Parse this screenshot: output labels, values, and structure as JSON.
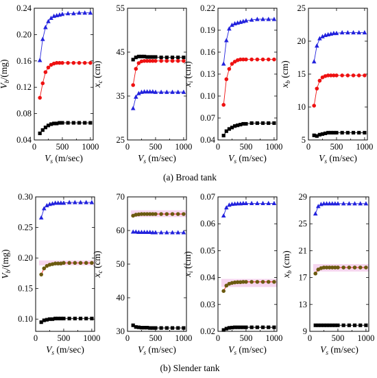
{
  "captions": {
    "top": "(a) Broad tank",
    "bottom": "(b) Slender tank"
  },
  "colors": {
    "black": "#000000",
    "red": "#ee1111",
    "blue": "#2222dd",
    "olive": "#6b5a10",
    "highlight": "#f6d6ef"
  },
  "chart_data": [
    {
      "type": "line",
      "id": "a1",
      "xlabel": {
        "main": "V",
        "sub": "s",
        "rest": " (m/sec)"
      },
      "ylabel": {
        "main": "V",
        "sub": "b",
        "rest": "/(mg)"
      },
      "xlim": [
        0,
        1050
      ],
      "ylim": [
        0.04,
        0.24
      ],
      "xticks": [
        0,
        500,
        1000
      ],
      "yticks": [
        0.04,
        0.08,
        0.12,
        0.16,
        0.2,
        0.24
      ],
      "ytick_labels": [
        "0.04",
        "0.08",
        "0.12",
        "0.16",
        "0.20",
        "0.24"
      ],
      "x": [
        100,
        150,
        200,
        250,
        300,
        350,
        400,
        450,
        500,
        600,
        700,
        800,
        900,
        1000
      ],
      "series": [
        {
          "color": "blue",
          "marker": "triangle",
          "values": [
            0.161,
            0.193,
            0.211,
            0.22,
            0.225,
            0.228,
            0.229,
            0.23,
            0.231,
            0.232,
            0.232,
            0.233,
            0.233,
            0.233
          ]
        },
        {
          "color": "red",
          "marker": "circle",
          "values": [
            0.104,
            0.126,
            0.143,
            0.15,
            0.154,
            0.156,
            0.157,
            0.157,
            0.157,
            0.157,
            0.157,
            0.157,
            0.157,
            0.157
          ]
        },
        {
          "color": "black",
          "marker": "square",
          "values": [
            0.05,
            0.055,
            0.059,
            0.062,
            0.064,
            0.065,
            0.065,
            0.066,
            0.066,
            0.066,
            0.066,
            0.066,
            0.066,
            0.066
          ]
        }
      ]
    },
    {
      "type": "line",
      "id": "a2",
      "xlabel": {
        "main": "V",
        "sub": "s",
        "rest": " (m/sec)"
      },
      "ylabel": {
        "main": "x",
        "sub": "c",
        "rest": " (cm)"
      },
      "xlim": [
        0,
        1050
      ],
      "ylim": [
        25,
        55
      ],
      "xticks": [
        0,
        500,
        1000
      ],
      "yticks": [
        25,
        35,
        45,
        55
      ],
      "ytick_labels": [
        "25",
        "35",
        "45",
        "55"
      ],
      "x": [
        100,
        150,
        200,
        250,
        300,
        350,
        400,
        450,
        500,
        600,
        700,
        800,
        900,
        1000
      ],
      "series": [
        {
          "color": "black",
          "marker": "square",
          "values": [
            43.3,
            43.8,
            44.0,
            44.0,
            44.0,
            43.9,
            43.9,
            43.9,
            43.9,
            43.8,
            43.8,
            43.8,
            43.8,
            43.8
          ]
        },
        {
          "color": "red",
          "marker": "circle",
          "values": [
            37.5,
            41.2,
            42.5,
            42.9,
            43.0,
            43.0,
            43.0,
            43.0,
            43.0,
            43.0,
            43.0,
            43.0,
            43.0,
            43.0
          ]
        },
        {
          "color": "blue",
          "marker": "triangle",
          "values": [
            32.2,
            34.8,
            35.6,
            35.9,
            36.0,
            36.0,
            36.0,
            36.0,
            35.9,
            35.9,
            35.9,
            35.9,
            35.9,
            35.9
          ]
        }
      ]
    },
    {
      "type": "line",
      "id": "a3",
      "xlabel": {
        "main": "V",
        "sub": "s",
        "rest": " (m/sec)"
      },
      "ylabel": {
        "main": "x",
        "sub": "i",
        "rest": " (cm)"
      },
      "xlim": [
        0,
        1050
      ],
      "ylim": [
        0.04,
        0.22
      ],
      "xticks": [
        0,
        500,
        1000
      ],
      "yticks": [
        0.04,
        0.07,
        0.1,
        0.13,
        0.16,
        0.19,
        0.22
      ],
      "ytick_labels": [
        "0.04",
        "0.07",
        "0.10",
        "0.13",
        "0.16",
        "0.19",
        "0.22"
      ],
      "x": [
        100,
        150,
        200,
        250,
        300,
        350,
        400,
        450,
        500,
        600,
        700,
        800,
        900,
        1000
      ],
      "series": [
        {
          "color": "blue",
          "marker": "triangle",
          "values": [
            0.144,
            0.176,
            0.192,
            0.197,
            0.199,
            0.2,
            0.201,
            0.202,
            0.203,
            0.204,
            0.205,
            0.205,
            0.205,
            0.205
          ]
        },
        {
          "color": "red",
          "marker": "circle",
          "values": [
            0.088,
            0.123,
            0.137,
            0.144,
            0.147,
            0.149,
            0.15,
            0.15,
            0.15,
            0.15,
            0.15,
            0.15,
            0.15,
            0.15
          ]
        },
        {
          "color": "black",
          "marker": "square",
          "values": [
            0.046,
            0.052,
            0.055,
            0.057,
            0.059,
            0.06,
            0.061,
            0.062,
            0.062,
            0.063,
            0.063,
            0.063,
            0.063,
            0.063
          ]
        }
      ]
    },
    {
      "type": "line",
      "id": "a4",
      "xlabel": {
        "main": "V",
        "sub": "s",
        "rest": " (m/sec)"
      },
      "ylabel": {
        "main": "x",
        "sub": "b",
        "rest": " (cm)"
      },
      "xlim": [
        0,
        1050
      ],
      "ylim": [
        5,
        25
      ],
      "xticks": [
        0,
        500,
        1000
      ],
      "yticks": [
        5,
        10,
        15,
        20,
        25
      ],
      "ytick_labels": [
        "5",
        "10",
        "15",
        "20",
        "25"
      ],
      "x": [
        100,
        150,
        200,
        250,
        300,
        350,
        400,
        450,
        500,
        600,
        700,
        800,
        900,
        1000
      ],
      "series": [
        {
          "color": "blue",
          "marker": "triangle",
          "values": [
            16.9,
            19.3,
            20.4,
            20.7,
            20.9,
            21.0,
            21.1,
            21.2,
            21.2,
            21.3,
            21.3,
            21.3,
            21.3,
            21.3
          ]
        },
        {
          "color": "red",
          "marker": "circle",
          "values": [
            10.2,
            12.8,
            14.0,
            14.5,
            14.7,
            14.8,
            14.8,
            14.8,
            14.8,
            14.8,
            14.8,
            14.8,
            14.8,
            14.8
          ]
        },
        {
          "color": "black",
          "marker": "square",
          "values": [
            5.7,
            5.6,
            5.8,
            5.9,
            6.0,
            6.1,
            6.1,
            6.1,
            6.1,
            6.1,
            6.1,
            6.1,
            6.1,
            6.1
          ]
        }
      ]
    },
    {
      "type": "line",
      "id": "b1",
      "xlabel": {
        "main": "V",
        "sub": "s",
        "rest": " (m/sec)"
      },
      "ylabel": {
        "main": "V",
        "sub": "b",
        "rest": "/(mg)"
      },
      "xlim": [
        0,
        1050
      ],
      "ylim": [
        0.08,
        0.3
      ],
      "xticks": [
        0,
        500,
        1000
      ],
      "yticks": [
        0.1,
        0.15,
        0.2,
        0.25,
        0.3
      ],
      "ytick_labels": [
        "0.10",
        "0.15",
        "0.20",
        "0.25",
        "0.30"
      ],
      "highlight": [
        0.188,
        0.196
      ],
      "x": [
        100,
        150,
        200,
        250,
        300,
        350,
        400,
        450,
        500,
        600,
        700,
        800,
        900,
        1000
      ],
      "series": [
        {
          "color": "blue",
          "marker": "triangle",
          "values": [
            0.266,
            0.281,
            0.286,
            0.288,
            0.289,
            0.29,
            0.29,
            0.29,
            0.29,
            0.291,
            0.291,
            0.291,
            0.291,
            0.291
          ]
        },
        {
          "color": "olive",
          "fill2": "red",
          "marker": "circle",
          "values": [
            0.173,
            0.183,
            0.187,
            0.189,
            0.19,
            0.191,
            0.191,
            0.191,
            0.192,
            0.192,
            0.192,
            0.192,
            0.192,
            0.192
          ]
        },
        {
          "color": "black",
          "marker": "square",
          "values": [
            0.095,
            0.098,
            0.099,
            0.1,
            0.1,
            0.101,
            0.101,
            0.101,
            0.101,
            0.101,
            0.101,
            0.101,
            0.101,
            0.101
          ]
        }
      ]
    },
    {
      "type": "line",
      "id": "b2",
      "xlabel": {
        "main": "V",
        "sub": "s",
        "rest": " (m/sec)"
      },
      "ylabel": {
        "main": "x",
        "sub": "c",
        "rest": " (cm)"
      },
      "xlim": [
        0,
        1050
      ],
      "ylim": [
        30,
        70
      ],
      "xticks": [
        0,
        500,
        1000
      ],
      "yticks": [
        30,
        40,
        50,
        60,
        70
      ],
      "ytick_labels": [
        "30",
        "40",
        "50",
        "60",
        "70"
      ],
      "highlight": [
        64.0,
        66.0
      ],
      "x": [
        100,
        150,
        200,
        250,
        300,
        350,
        400,
        450,
        500,
        600,
        700,
        800,
        900,
        1000
      ],
      "series": [
        {
          "color": "olive",
          "fill2": "red",
          "marker": "circle",
          "values": [
            64.4,
            64.7,
            64.8,
            64.9,
            64.9,
            64.9,
            64.9,
            64.9,
            64.9,
            64.9,
            64.9,
            64.9,
            64.9,
            64.9
          ]
        },
        {
          "color": "blue",
          "marker": "triangle",
          "values": [
            59.6,
            59.6,
            59.5,
            59.5,
            59.5,
            59.5,
            59.5,
            59.4,
            59.4,
            59.4,
            59.4,
            59.4,
            59.4,
            59.4
          ]
        },
        {
          "color": "black",
          "marker": "square",
          "values": [
            31.8,
            31.3,
            31.2,
            31.1,
            31.1,
            31.1,
            31.0,
            31.0,
            31.0,
            31.0,
            31.0,
            31.0,
            31.0,
            31.0
          ]
        }
      ]
    },
    {
      "type": "line",
      "id": "b3",
      "xlabel": {
        "main": "V",
        "sub": "s",
        "rest": " (m/sec)"
      },
      "ylabel": {
        "main": "x",
        "sub": "i",
        "rest": " (cm)"
      },
      "xlim": [
        0,
        1050
      ],
      "ylim": [
        0.02,
        0.07
      ],
      "xticks": [
        0,
        500,
        1000
      ],
      "yticks": [
        0.02,
        0.03,
        0.04,
        0.05,
        0.06,
        0.07
      ],
      "ytick_labels": [
        "0.02",
        "0.03",
        "0.04",
        "0.05",
        "0.06",
        "0.07"
      ],
      "highlight": [
        0.0365,
        0.0395
      ],
      "x": [
        100,
        150,
        200,
        250,
        300,
        350,
        400,
        450,
        500,
        600,
        700,
        800,
        900,
        1000
      ],
      "series": [
        {
          "color": "blue",
          "marker": "triangle",
          "values": [
            0.063,
            0.066,
            0.067,
            0.0673,
            0.0674,
            0.0675,
            0.0675,
            0.0676,
            0.0676,
            0.0676,
            0.0676,
            0.0676,
            0.0676,
            0.0676
          ]
        },
        {
          "color": "olive",
          "fill2": "red",
          "marker": "circle",
          "values": [
            0.035,
            0.037,
            0.0377,
            0.038,
            0.0382,
            0.0383,
            0.0383,
            0.0384,
            0.0384,
            0.0384,
            0.0384,
            0.0384,
            0.0384,
            0.0384
          ]
        },
        {
          "color": "black",
          "marker": "square",
          "values": [
            0.0205,
            0.021,
            0.0213,
            0.0214,
            0.0215,
            0.0215,
            0.0215,
            0.0215,
            0.0215,
            0.0215,
            0.0215,
            0.0215,
            0.0215,
            0.0215
          ]
        }
      ]
    },
    {
      "type": "line",
      "id": "b4",
      "xlabel": {
        "main": "V",
        "sub": "s",
        "rest": " (m/sec)"
      },
      "ylabel": {
        "main": "x",
        "sub": "b",
        "rest": " (cm)"
      },
      "xlim": [
        0,
        1050
      ],
      "ylim": [
        9,
        29
      ],
      "xticks": [
        0,
        500,
        1000
      ],
      "yticks": [
        9,
        13,
        17,
        21,
        25,
        29
      ],
      "ytick_labels": [
        "9",
        "13",
        "17",
        "21",
        "25",
        "29"
      ],
      "highlight": [
        17.9,
        19.0
      ],
      "x": [
        100,
        150,
        200,
        250,
        300,
        350,
        400,
        450,
        500,
        600,
        700,
        800,
        900,
        1000
      ],
      "series": [
        {
          "color": "blue",
          "marker": "triangle",
          "values": [
            26.5,
            27.6,
            27.9,
            28.0,
            28.0,
            28.0,
            28.0,
            28.0,
            28.0,
            28.0,
            28.0,
            28.0,
            28.0,
            28.0
          ]
        },
        {
          "color": "olive",
          "fill2": "red",
          "marker": "circle",
          "values": [
            17.6,
            18.2,
            18.4,
            18.5,
            18.5,
            18.5,
            18.5,
            18.5,
            18.5,
            18.5,
            18.5,
            18.5,
            18.5,
            18.5
          ]
        },
        {
          "color": "black",
          "marker": "square",
          "values": [
            9.9,
            9.9,
            9.9,
            9.9,
            9.9,
            9.9,
            9.9,
            9.9,
            9.9,
            9.9,
            9.9,
            9.9,
            9.9,
            9.9
          ]
        }
      ]
    }
  ]
}
